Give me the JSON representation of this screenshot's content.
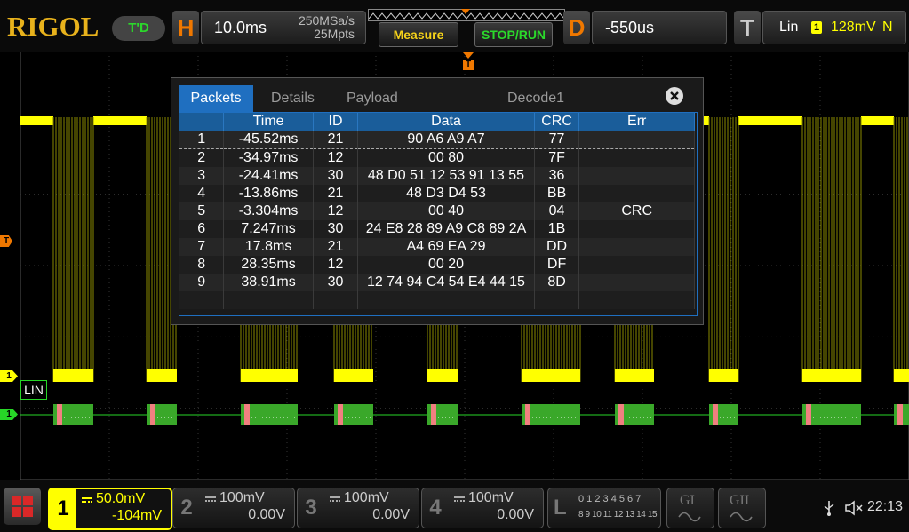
{
  "brand": "RIGOL",
  "status_badge": "T'D",
  "horizontal": {
    "label": "H",
    "timebase": "10.0ms",
    "sample_rate": "250MSa/s",
    "memory_depth": "25Mpts"
  },
  "buttons": {
    "measure": "Measure",
    "stop_run": "STOP/RUN"
  },
  "delay": {
    "label": "D",
    "value": "-550us"
  },
  "trigger": {
    "label": "T",
    "type": "Lin",
    "source": "1",
    "level": "128mV",
    "mode": "N"
  },
  "markers": {
    "trigger_marker": "T",
    "ch1_marker": "1",
    "decode_marker": "1",
    "lin_label": "LIN"
  },
  "dialog": {
    "tabs": [
      "Packets",
      "Details",
      "Payload"
    ],
    "title": "Decode1",
    "close_icon": "close-icon",
    "columns": [
      "",
      "Time",
      "ID",
      "Data",
      "CRC",
      "Err"
    ],
    "rows": [
      [
        "1",
        "-45.52ms",
        "21",
        "90 A6 A9 A7",
        "77",
        ""
      ],
      [
        "2",
        "-34.97ms",
        "12",
        "00 80",
        "7F",
        ""
      ],
      [
        "3",
        "-24.41ms",
        "30",
        "48 D0 51 12 53 91 13 55",
        "36",
        ""
      ],
      [
        "4",
        "-13.86ms",
        "21",
        "48 D3 D4 53",
        "BB",
        ""
      ],
      [
        "5",
        "-3.304ms",
        "12",
        "00 40",
        "04",
        "CRC"
      ],
      [
        "6",
        "7.247ms",
        "30",
        "24 E8 28 89 A9 C8 89 2A",
        "1B",
        ""
      ],
      [
        "7",
        "17.8ms",
        "21",
        "A4 69 EA 29",
        "DD",
        ""
      ],
      [
        "8",
        "28.35ms",
        "12",
        "00 20",
        "DF",
        ""
      ],
      [
        "9",
        "38.91ms",
        "30",
        "12 74 94 C4 54 E4 44 15",
        "8D",
        ""
      ]
    ]
  },
  "channels": [
    {
      "num": "1",
      "scale": "50.0mV",
      "offset": "-104mV",
      "active": true
    },
    {
      "num": "2",
      "scale": "100mV",
      "offset": "0.00V",
      "active": false
    },
    {
      "num": "3",
      "scale": "100mV",
      "offset": "0.00V",
      "active": false
    },
    {
      "num": "4",
      "scale": "100mV",
      "offset": "0.00V",
      "active": false
    }
  ],
  "logic": {
    "label": "L",
    "row1": "0 1 2 3  4 5 6 7",
    "row2": "8 9 10 11 12 13 14 15"
  },
  "generators": [
    "GI",
    "GII"
  ],
  "clock": "22:13",
  "colors": {
    "ch1": "#ffff00",
    "accent": "#f07800",
    "green": "#27d627",
    "tab_blue": "#1f6fc0",
    "header_blue": "#1a5d9a"
  }
}
